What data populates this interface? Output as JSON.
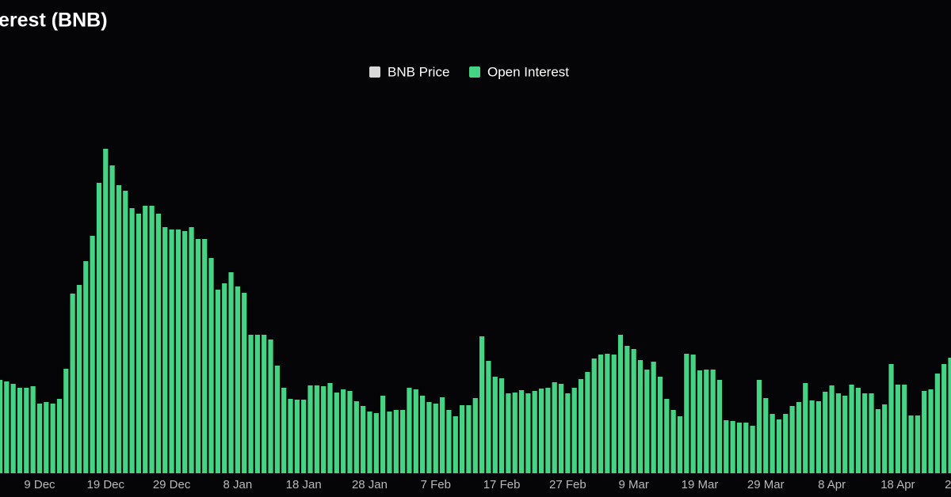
{
  "chart_data": {
    "type": "bar",
    "title": "erest (BNB)",
    "legend": [
      {
        "name": "BNB Price",
        "color": "#d9d9d9"
      },
      {
        "name": "Open Interest",
        "color": "#45d483"
      }
    ],
    "categories": [
      null,
      null,
      null,
      null,
      null,
      null,
      "9 Dec",
      null,
      null,
      null,
      null,
      null,
      null,
      null,
      null,
      null,
      "19 Dec",
      null,
      null,
      null,
      null,
      null,
      null,
      null,
      null,
      null,
      "29 Dec",
      null,
      null,
      null,
      null,
      null,
      null,
      null,
      null,
      null,
      "8 Jan",
      null,
      null,
      null,
      null,
      null,
      null,
      null,
      null,
      null,
      "18 Jan",
      null,
      null,
      null,
      null,
      null,
      null,
      null,
      null,
      null,
      "28 Jan",
      null,
      null,
      null,
      null,
      null,
      null,
      null,
      null,
      null,
      "7 Feb",
      null,
      null,
      null,
      null,
      null,
      null,
      null,
      null,
      null,
      "17 Feb",
      null,
      null,
      null,
      null,
      null,
      null,
      null,
      null,
      null,
      "27 Feb",
      null,
      null,
      null,
      null,
      null,
      null,
      null,
      null,
      null,
      "9 Mar",
      null,
      null,
      null,
      null,
      null,
      null,
      null,
      null,
      null,
      "19 Mar",
      null,
      null,
      null,
      null,
      null,
      null,
      null,
      null,
      null,
      "29 Mar",
      null,
      null,
      null,
      null,
      null,
      null,
      null,
      null,
      null,
      "8 Apr",
      null,
      null,
      null,
      null,
      null,
      null,
      null,
      null,
      null,
      "18 Apr",
      null,
      null,
      null,
      null,
      null,
      null,
      null,
      null,
      null,
      "2"
    ],
    "series": [
      {
        "name": "Open Interest",
        "color": "#45d483",
        "values": [
          118,
          116,
          113,
          108,
          108,
          110,
          88,
          90,
          88,
          94,
          132,
          227,
          238,
          268,
          300,
          367,
          410,
          389,
          364,
          357,
          335,
          328,
          338,
          338,
          328,
          311,
          308,
          308,
          306,
          311,
          296,
          296,
          272,
          232,
          240,
          254,
          236,
          228,
          175,
          175,
          175,
          169,
          136,
          108,
          94,
          93,
          93,
          111,
          111,
          110,
          114,
          102,
          106,
          104,
          91,
          85,
          78,
          76,
          98,
          78,
          80,
          80,
          108,
          106,
          98,
          90,
          88,
          96,
          80,
          72,
          86,
          86,
          95,
          173,
          142,
          122,
          120,
          101,
          102,
          105,
          101,
          104,
          107,
          108,
          115,
          113,
          101,
          108,
          119,
          128,
          145,
          150,
          151,
          150,
          175,
          161,
          157,
          143,
          131,
          141,
          122,
          94,
          80,
          72,
          151,
          150,
          130,
          131,
          131,
          118,
          67,
          66,
          64,
          64,
          60,
          118,
          95,
          75,
          68,
          75,
          85,
          90,
          114,
          92,
          91,
          103,
          111,
          101,
          98,
          112,
          108,
          101,
          101,
          81,
          87,
          138,
          112,
          112,
          73,
          73,
          104,
          106,
          126,
          138,
          146,
          null,
          null
        ]
      }
    ],
    "ylim": [
      0,
      440
    ]
  }
}
